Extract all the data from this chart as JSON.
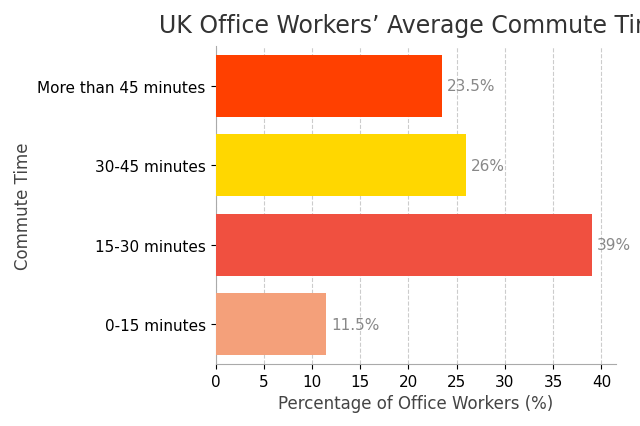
{
  "title": "UK Office Workers’ Average Commute Time",
  "categories": [
    "0-15 minutes",
    "15-30 minutes",
    "30-45 minutes",
    "More than 45 minutes"
  ],
  "values": [
    11.5,
    39,
    26,
    23.5
  ],
  "bar_colors": [
    "#F4A07A",
    "#F05040",
    "#FFD700",
    "#FF4000"
  ],
  "bar_labels": [
    "11.5%",
    "39%",
    "26%",
    "23.5%"
  ],
  "xlabel": "Percentage of Office Workers (%)",
  "ylabel": "Commute Time",
  "xlim": [
    0,
    41.5
  ],
  "xticks": [
    0,
    5,
    10,
    15,
    20,
    25,
    30,
    35,
    40
  ],
  "background_color": "#ffffff",
  "grid_color": "#cccccc",
  "title_fontsize": 17,
  "label_fontsize": 12,
  "tick_fontsize": 11,
  "bar_height": 0.78
}
